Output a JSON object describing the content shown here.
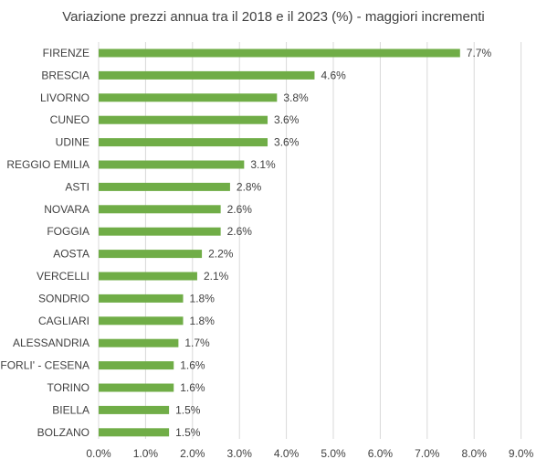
{
  "chart_data": {
    "type": "bar",
    "orientation": "horizontal",
    "title": "Variazione prezzi annua tra il 2018 e il 2023 (%) - maggiori incrementi",
    "categories": [
      "FIRENZE",
      "BRESCIA",
      "LIVORNO",
      "CUNEO",
      "UDINE",
      "REGGIO EMILIA",
      "ASTI",
      "NOVARA",
      "FOGGIA",
      "AOSTA",
      "VERCELLI",
      "SONDRIO",
      "CAGLIARI",
      "ALESSANDRIA",
      "FORLI' - CESENA",
      "TORINO",
      "BIELLA",
      "BOLZANO"
    ],
    "values": [
      7.7,
      4.6,
      3.8,
      3.6,
      3.6,
      3.1,
      2.8,
      2.6,
      2.6,
      2.2,
      2.1,
      1.8,
      1.8,
      1.7,
      1.6,
      1.6,
      1.5,
      1.5
    ],
    "value_labels": [
      "7.7%",
      "4.6%",
      "3.8%",
      "3.6%",
      "3.6%",
      "3.1%",
      "2.8%",
      "2.6%",
      "2.6%",
      "2.2%",
      "2.1%",
      "1.8%",
      "1.8%",
      "1.7%",
      "1.6%",
      "1.6%",
      "1.5%",
      "1.5%"
    ],
    "xticks": [
      "0.0%",
      "1.0%",
      "2.0%",
      "3.0%",
      "4.0%",
      "5.0%",
      "6.0%",
      "7.0%",
      "8.0%",
      "9.0%"
    ],
    "xlim": [
      0,
      9
    ],
    "grid": "vertical",
    "legend": "none",
    "bar_color": "#70ad47"
  }
}
